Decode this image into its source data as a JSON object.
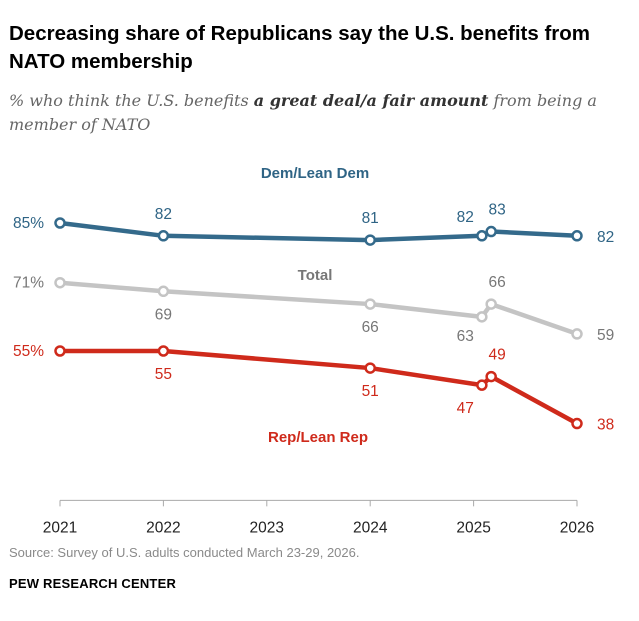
{
  "title": "Decreasing share of Republicans say the U.S. benefits from NATO membership",
  "subtitle": {
    "before": "% who think the U.S. benefits ",
    "emphasis": "a great deal/a fair amount",
    "after": " from being a member of NATO"
  },
  "source": "Source: Survey of U.S. adults conducted March 23-29, 2026.",
  "org": "PEW RESEARCH CENTER",
  "chart_data": {
    "type": "line",
    "title": "",
    "xlabel": "",
    "ylabel": "",
    "x_ticks": [
      2021,
      2022,
      2023,
      2024,
      2025,
      2026
    ],
    "xlim": [
      2021,
      2026
    ],
    "ylim": [
      20,
      90
    ],
    "grid": false,
    "legend": "inline labels",
    "series": [
      {
        "name": "Dem/Lean Dem",
        "color": "#346a8b",
        "label_color": "#2f6485",
        "x": [
          2021,
          2022,
          2024,
          2025.08,
          2025.17,
          2026
        ],
        "values": [
          85,
          82,
          81,
          82,
          83,
          82
        ],
        "labels": [
          "85%",
          "82",
          "81",
          "82",
          "83",
          "82"
        ]
      },
      {
        "name": "Total",
        "color": "#c4c4c4",
        "label_color": "#777777",
        "x": [
          2021,
          2022,
          2024,
          2025.08,
          2025.17,
          2026
        ],
        "values": [
          71,
          69,
          66,
          63,
          66,
          59
        ],
        "labels": [
          "71%",
          "69",
          "66",
          "63",
          "66",
          "59"
        ]
      },
      {
        "name": "Rep/Lean Rep",
        "color": "#cf2a1b",
        "label_color": "#cf2a1b",
        "x": [
          2021,
          2022,
          2024,
          2025.08,
          2025.17,
          2026
        ],
        "values": [
          55,
          55,
          51,
          47,
          49,
          38
        ],
        "labels": [
          "55%",
          "55",
          "51",
          "47",
          "49",
          "38"
        ]
      }
    ]
  }
}
